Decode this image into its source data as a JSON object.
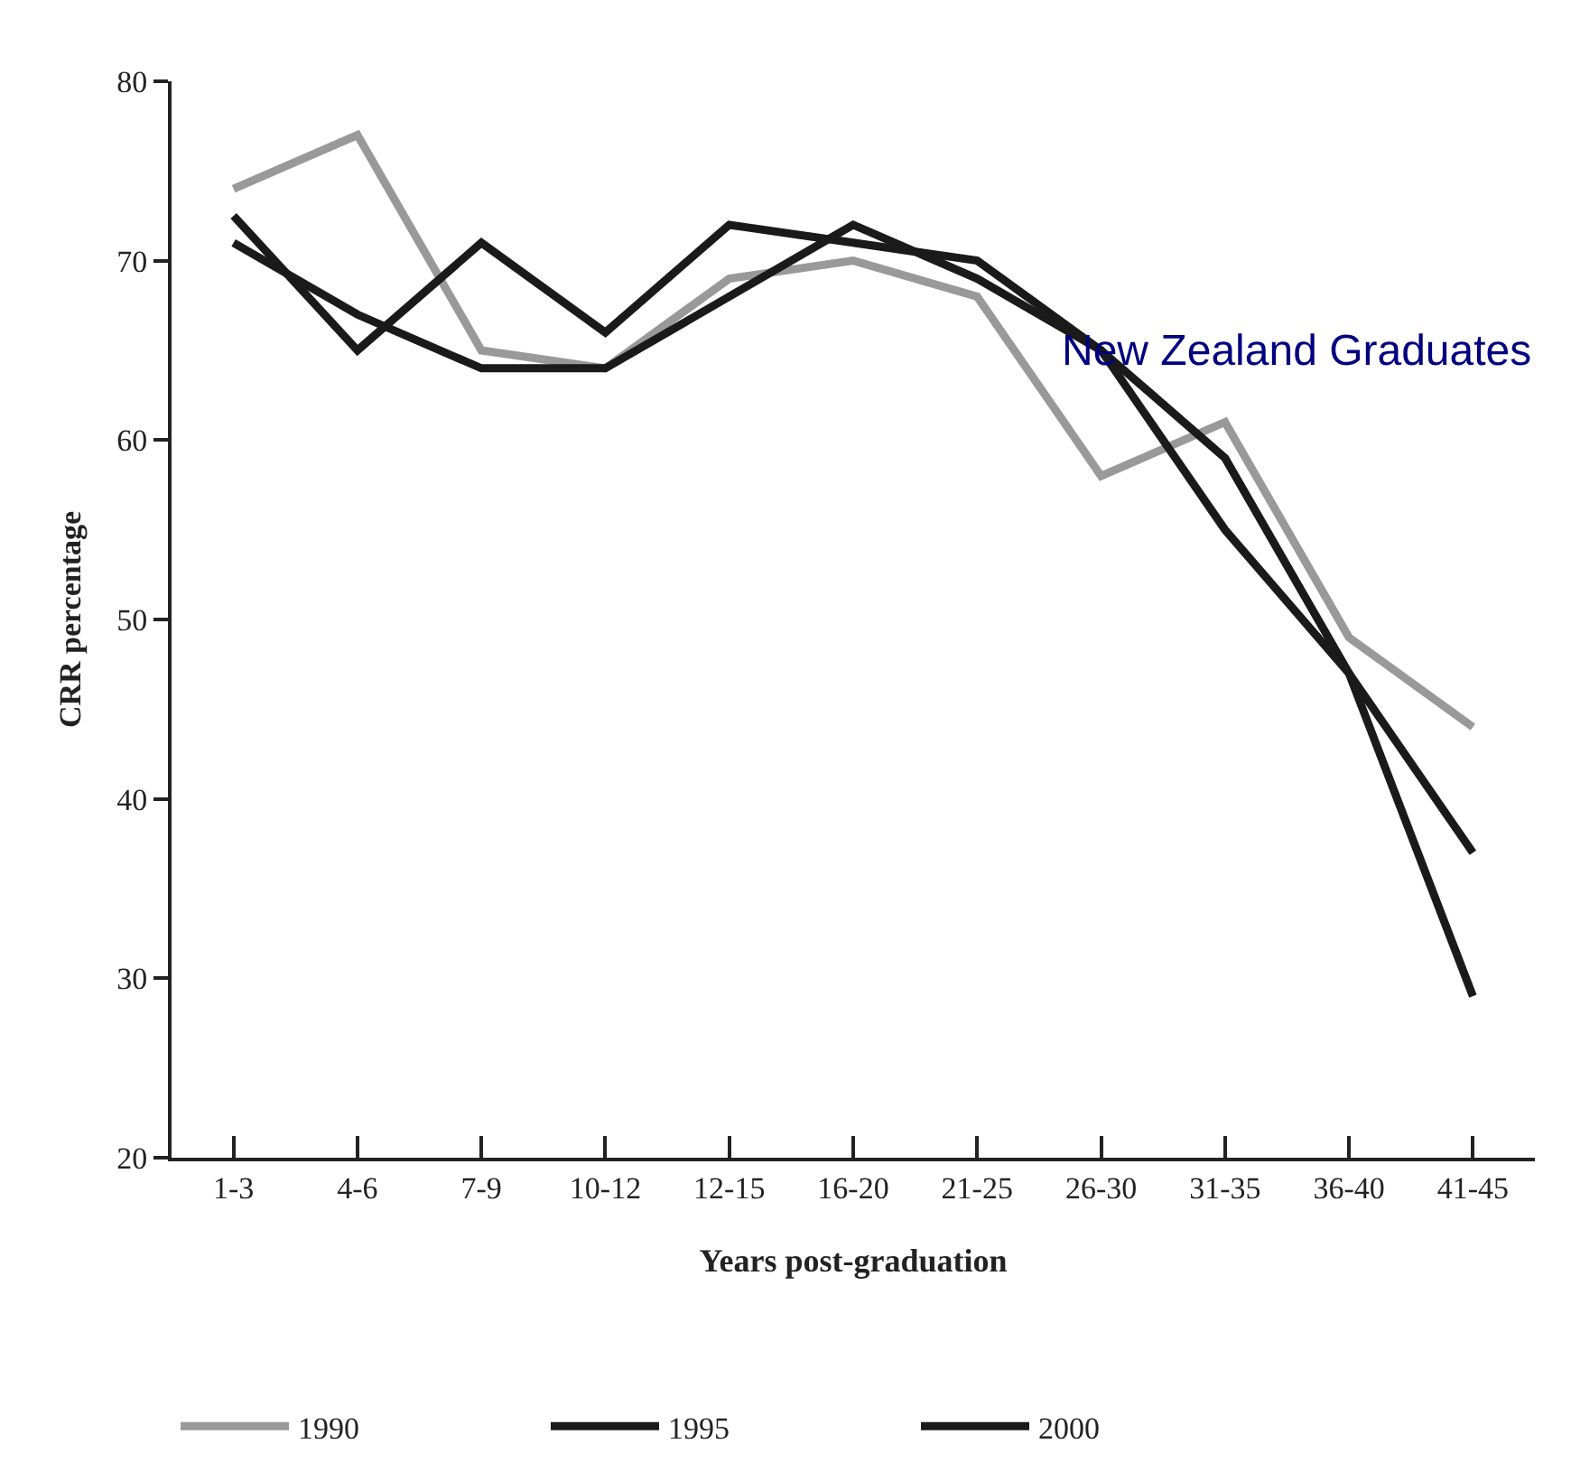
{
  "chart_data": {
    "type": "line",
    "xlabel": "Years post-graduation",
    "ylabel": "CRR percentage",
    "categories": [
      "1-3",
      "4-6",
      "7-9",
      "10-12",
      "12-15",
      "16-20",
      "21-25",
      "26-30",
      "31-35",
      "36-40",
      "41-45"
    ],
    "series": [
      {
        "name": "1990",
        "color": "#999999",
        "values": [
          74,
          77,
          65,
          64,
          69,
          70,
          68,
          58,
          61,
          49,
          44
        ]
      },
      {
        "name": "1995",
        "color": "#1a1a1a",
        "values": [
          72.5,
          65,
          71,
          66,
          72,
          71,
          70,
          65,
          59,
          47,
          37
        ]
      },
      {
        "name": "2000",
        "color": "#1a1a1a",
        "values": [
          71,
          67,
          64,
          64,
          68,
          72,
          69,
          65,
          55,
          47,
          29
        ]
      }
    ],
    "ylim": [
      20,
      80
    ],
    "yticks": [
      20,
      30,
      40,
      50,
      60,
      70,
      80
    ],
    "legend": "bottom",
    "marker": "none",
    "line_style": "solid",
    "annotations": [
      "New Zealand Graduates"
    ]
  }
}
